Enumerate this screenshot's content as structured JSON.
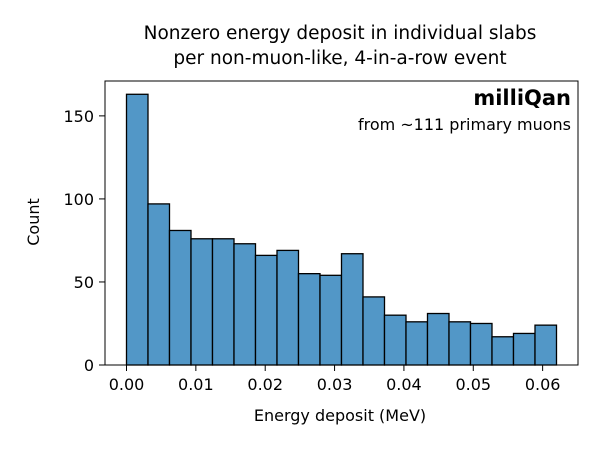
{
  "chart_data": {
    "type": "bar",
    "title": [
      "Nonzero energy deposit in individual slabs",
      "per non-muon-like, 4-in-a-row event"
    ],
    "xlabel": "Energy deposit (MeV)",
    "ylabel": "Count",
    "xlim": [
      -0.0031,
      0.0651
    ],
    "ylim": [
      0,
      171
    ],
    "xticks": [
      0.0,
      0.01,
      0.02,
      0.03,
      0.04,
      0.05,
      0.06
    ],
    "xtick_labels": [
      "0.00",
      "0.01",
      "0.02",
      "0.03",
      "0.04",
      "0.05",
      "0.06"
    ],
    "yticks": [
      0,
      50,
      100,
      150
    ],
    "ytick_labels": [
      "0",
      "50",
      "100",
      "150"
    ],
    "grid": false,
    "bar_color": "#5297c7",
    "edge_color": "#000000",
    "bins": [
      {
        "x0": 0.0,
        "x1": 0.0031,
        "count": 163
      },
      {
        "x0": 0.0031,
        "x1": 0.0062,
        "count": 97
      },
      {
        "x0": 0.0062,
        "x1": 0.0093,
        "count": 81
      },
      {
        "x0": 0.0093,
        "x1": 0.0124,
        "count": 76
      },
      {
        "x0": 0.0124,
        "x1": 0.0155,
        "count": 76
      },
      {
        "x0": 0.0155,
        "x1": 0.0186,
        "count": 73
      },
      {
        "x0": 0.0186,
        "x1": 0.0217,
        "count": 66
      },
      {
        "x0": 0.0217,
        "x1": 0.0248,
        "count": 69
      },
      {
        "x0": 0.0248,
        "x1": 0.0279,
        "count": 55
      },
      {
        "x0": 0.0279,
        "x1": 0.031,
        "count": 54
      },
      {
        "x0": 0.031,
        "x1": 0.0341,
        "count": 67
      },
      {
        "x0": 0.0341,
        "x1": 0.0372,
        "count": 41
      },
      {
        "x0": 0.0372,
        "x1": 0.0403,
        "count": 30
      },
      {
        "x0": 0.0403,
        "x1": 0.0434,
        "count": 26
      },
      {
        "x0": 0.0434,
        "x1": 0.0465,
        "count": 31
      },
      {
        "x0": 0.0465,
        "x1": 0.0496,
        "count": 26
      },
      {
        "x0": 0.0496,
        "x1": 0.0527,
        "count": 25
      },
      {
        "x0": 0.0527,
        "x1": 0.0558,
        "count": 17
      },
      {
        "x0": 0.0558,
        "x1": 0.0589,
        "count": 19
      },
      {
        "x0": 0.0589,
        "x1": 0.062,
        "count": 24
      }
    ],
    "annotations": {
      "brand": "milliQan",
      "subtext": "from ~111 primary muons",
      "placement": "top-right"
    }
  }
}
